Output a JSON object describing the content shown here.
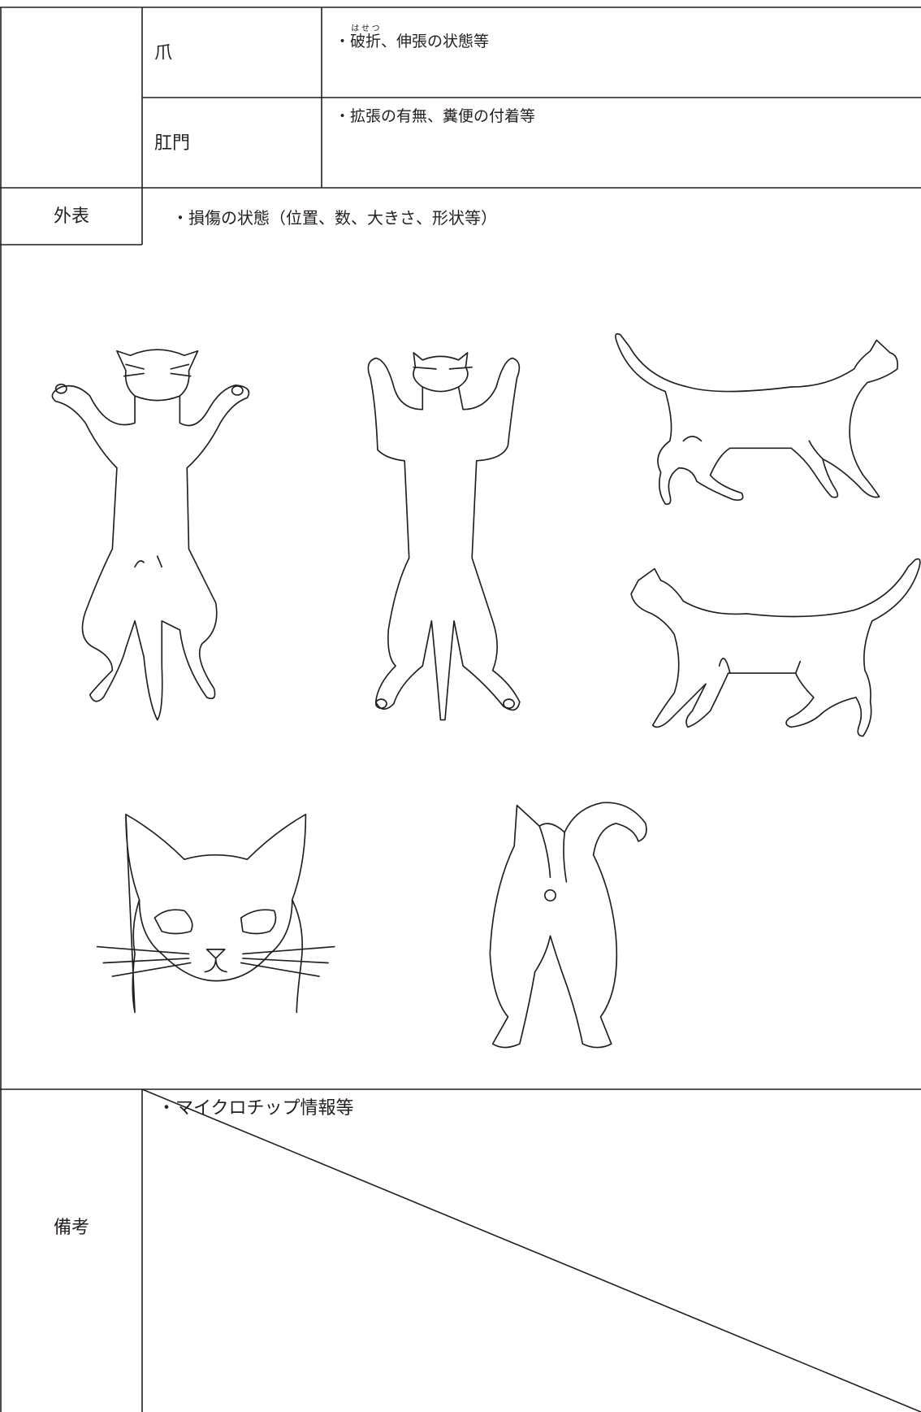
{
  "claw": {
    "label": "爪",
    "note_bullet": "・",
    "note_ruby_base": "破折",
    "note_ruby_text": "はせつ",
    "note_rest": "、伸張の状態等"
  },
  "anus": {
    "label": "肛門",
    "note": "・拡張の有無、糞便の付着等"
  },
  "exterior": {
    "label": "外表",
    "note": "・損傷の状態（位置、数、大きさ、形状等）"
  },
  "remarks": {
    "label": "備考",
    "note": "・マイクロチップ情報等"
  }
}
